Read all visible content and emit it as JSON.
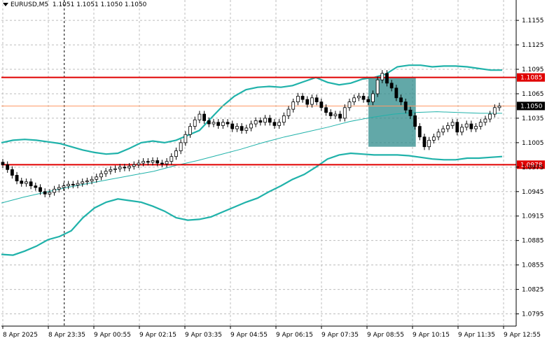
{
  "header": {
    "symbol": "EURUSD,M5",
    "ohlc": "1.1051 1.1051 1.1050 1.1050"
  },
  "colors": {
    "grid": "#bdbdbd",
    "axis": "#000000",
    "candle": "#000000",
    "bollinger": "#20b2aa",
    "ma": "#20b2aa",
    "resistance": "#e00000",
    "support": "#e00000",
    "current_price": "#ff9966",
    "highlight_box": "#2e8b8b"
  },
  "chart_data": {
    "type": "candlestick",
    "ylim": [
      1.078,
      1.118
    ],
    "y_ticks": [
      "1.1155",
      "1.1125",
      "1.1095",
      "1.1065",
      "1.1035",
      "1.1005",
      "1.0975",
      "1.0945",
      "1.0915",
      "1.0885",
      "1.0855",
      "1.0825",
      "1.0795"
    ],
    "x_labels": [
      "8 Apr 2025",
      "8 Apr 23:35",
      "9 Apr 00:55",
      "9 Apr 02:15",
      "9 Apr 03:35",
      "9 Apr 04:55",
      "9 Apr 06:15",
      "9 Apr 07:35",
      "9 Apr 08:55",
      "9 Apr 10:15",
      "9 Apr 11:35",
      "9 Apr 12:55"
    ],
    "horizontal_lines": [
      {
        "label": "1.1085",
        "value": 1.1085,
        "kind": "resistance"
      },
      {
        "label": "1.0978",
        "value": 1.0978,
        "kind": "support"
      },
      {
        "label": "1.1050",
        "value": 1.105,
        "kind": "current"
      }
    ],
    "close_series": [
      1.0978,
      1.0972,
      1.0965,
      1.0958,
      1.0955,
      1.0957,
      1.0952,
      1.095,
      1.0945,
      1.0942,
      1.0944,
      1.0948,
      1.095,
      1.0952,
      1.0954,
      1.0953,
      1.0955,
      1.0957,
      1.0958,
      1.096,
      1.0963,
      1.0967,
      1.097,
      1.0972,
      1.0973,
      1.0975,
      1.0974,
      1.0976,
      1.0978,
      1.098,
      1.0982,
      1.0981,
      1.0983,
      1.098,
      1.0979,
      1.0982,
      1.0988,
      1.0995,
      1.1005,
      1.1015,
      1.1025,
      1.1033,
      1.104,
      1.1032,
      1.1028,
      1.103,
      1.1026,
      1.103,
      1.1028,
      1.1022,
      1.1025,
      1.102,
      1.1023,
      1.1028,
      1.1032,
      1.103,
      1.1035,
      1.103,
      1.1026,
      1.103,
      1.1038,
      1.1046,
      1.1055,
      1.1062,
      1.1058,
      1.1052,
      1.106,
      1.1055,
      1.1048,
      1.1042,
      1.1038,
      1.104,
      1.1035,
      1.1048,
      1.1055,
      1.106,
      1.1062,
      1.1058,
      1.1055,
      1.1065,
      1.1082,
      1.109,
      1.1078,
      1.1072,
      1.106,
      1.1055,
      1.1045,
      1.1038,
      1.1025,
      1.1012,
      1.1,
      1.1008,
      1.1012,
      1.1018,
      1.1022,
      1.1026,
      1.103,
      1.1018,
      1.1024,
      1.1028,
      1.1022,
      1.1025,
      1.103,
      1.1034,
      1.104,
      1.1048,
      1.105
    ],
    "bollinger_upper": [
      1.1005,
      1.1008,
      1.1009,
      1.1008,
      1.1006,
      1.1004,
      1.1,
      1.0996,
      1.0993,
      1.0991,
      1.0992,
      1.0998,
      1.1005,
      1.1007,
      1.1005,
      1.1008,
      1.1014,
      1.102,
      1.1035,
      1.105,
      1.1062,
      1.107,
      1.1073,
      1.1074,
      1.1073,
      1.1075,
      1.108,
      1.1085,
      1.1079,
      1.1076,
      1.1078,
      1.1083,
      1.1085,
      1.1089,
      1.1098,
      1.11,
      1.11,
      1.1098,
      1.1099,
      1.1099,
      1.1098,
      1.1096,
      1.1094,
      1.1094
    ],
    "bollinger_lower": [
      1.0868,
      1.0867,
      1.0872,
      1.0878,
      1.0886,
      1.089,
      1.0897,
      1.0913,
      1.0925,
      1.0932,
      1.0936,
      1.0934,
      1.0932,
      1.0927,
      1.0921,
      1.0913,
      1.091,
      1.0911,
      1.0914,
      1.092,
      1.0926,
      1.0932,
      1.0937,
      1.0945,
      1.0952,
      1.096,
      1.0966,
      1.0975,
      1.0985,
      1.099,
      1.0992,
      1.0991,
      1.099,
      1.099,
      1.099,
      1.0989,
      1.0987,
      1.0985,
      1.0984,
      1.0984,
      1.0986,
      1.0986,
      1.0987,
      1.0988
    ],
    "moving_average": [
      1.0931,
      1.0938,
      1.0944,
      1.095,
      1.0955,
      1.096,
      1.0965,
      1.097,
      1.0977,
      1.0983,
      1.099,
      1.0997,
      1.1005,
      1.1012,
      1.1018,
      1.1024,
      1.1031,
      1.1036,
      1.104,
      1.1042,
      1.1043,
      1.1042,
      1.1041,
      1.1041
    ],
    "highlight_box": {
      "x_from": 0.713,
      "x_to": 0.805,
      "y_top": 1.1085,
      "y_bottom": 1.1
    }
  }
}
